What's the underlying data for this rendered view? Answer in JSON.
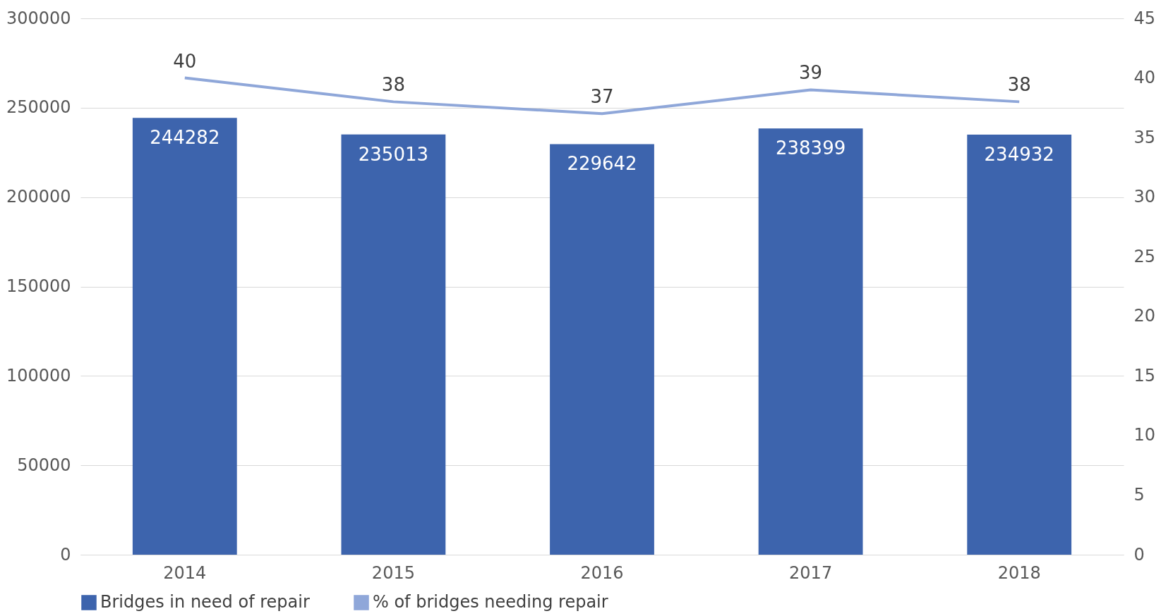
{
  "chart_data": {
    "type": "bar",
    "categories": [
      "2014",
      "2015",
      "2016",
      "2017",
      "2018"
    ],
    "series": [
      {
        "name": "Bridges in need of repair",
        "color": "#3d64ad",
        "values": [
          244282,
          235013,
          229642,
          238399,
          234932
        ]
      },
      {
        "name": "% of bridges needing repair",
        "type": "line",
        "axis": "y2",
        "color": "#8fa7d9",
        "values": [
          40,
          38,
          37,
          39,
          38
        ]
      }
    ],
    "ylim": [
      0,
      300000
    ],
    "yticks": [
      0,
      50000,
      100000,
      150000,
      200000,
      250000,
      300000
    ],
    "y2lim": [
      0,
      45
    ],
    "y2ticks": [
      0,
      5,
      10,
      15,
      20,
      25,
      30,
      35,
      40,
      45
    ],
    "grid": "y",
    "legend": "bottom",
    "data_labels": true,
    "marker": "none"
  }
}
